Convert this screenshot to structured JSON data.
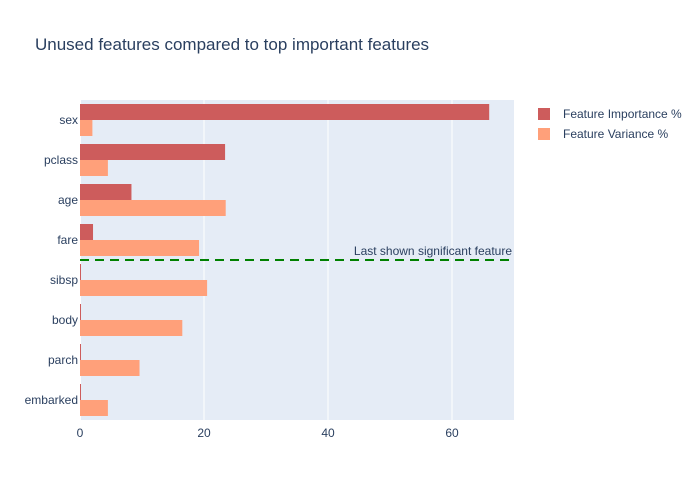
{
  "chart_data": {
    "type": "bar",
    "orientation": "horizontal",
    "title": "Unused features compared to top important features",
    "xlabel": "",
    "ylabel": "",
    "xlim": [
      0,
      70
    ],
    "x_ticks": [
      0,
      20,
      40,
      60
    ],
    "grid": true,
    "legend_position": "top-right",
    "categories": [
      "sex",
      "pclass",
      "age",
      "fare",
      "sibsp",
      "body",
      "parch",
      "embarked"
    ],
    "series": [
      {
        "name": "Feature Importance %",
        "color": "#cd5c5c",
        "values": [
          66,
          23.4,
          8.3,
          2.1,
          0.1,
          0.1,
          0.1,
          0.1
        ]
      },
      {
        "name": "Feature Variance %",
        "color": "#ffa07a",
        "values": [
          2.0,
          4.5,
          23.5,
          19.2,
          20.5,
          16.5,
          9.6,
          4.5
        ]
      }
    ],
    "annotation": {
      "text": "Last shown significant feature",
      "between": [
        "fare",
        "sibsp"
      ],
      "line_color": "#008000",
      "line_style": "dashed"
    }
  }
}
